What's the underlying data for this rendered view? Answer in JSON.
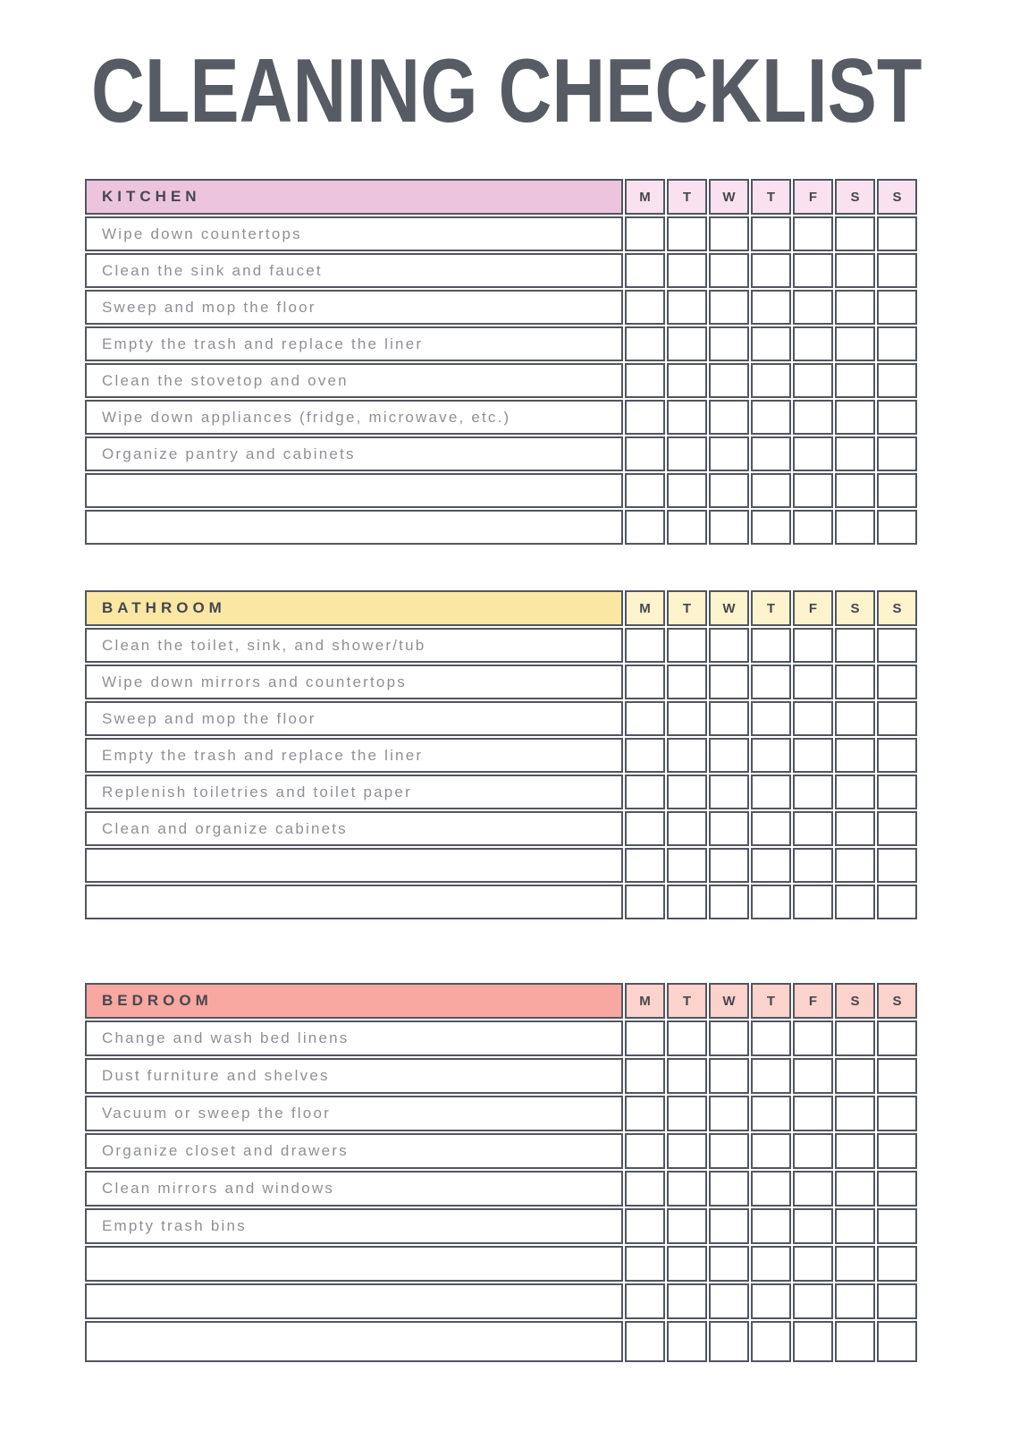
{
  "page": {
    "title": "CLEANING CHECKLIST"
  },
  "days": [
    "M",
    "T",
    "W",
    "T",
    "F",
    "S",
    "S"
  ],
  "sections": [
    {
      "name": "KITCHEN",
      "header_bg": "#edc4de",
      "day_bg": "#f9e1f0",
      "tasks": [
        "Wipe down countertops",
        "Clean the sink and faucet",
        "Sweep and mop the floor",
        "Empty the trash and replace the liner",
        "Clean the stovetop and oven",
        "Wipe down appliances (fridge, microwave, etc.)",
        "Organize pantry and cabinets",
        "",
        ""
      ]
    },
    {
      "name": "BATHROOM",
      "header_bg": "#fae7a3",
      "day_bg": "#fdf3cd",
      "tasks": [
        "Clean the toilet, sink, and shower/tub",
        "Wipe down mirrors and countertops",
        "Sweep and mop the floor",
        "Empty the trash and replace the liner",
        "Replenish toiletries and toilet paper",
        "Clean and organize cabinets",
        "",
        ""
      ]
    },
    {
      "name": "BEDROOM",
      "header_bg": "#f9a7a1",
      "day_bg": "#fcd2cc",
      "tasks": [
        "Change and wash bed linens",
        "Dust furniture and shelves",
        "Vacuum or sweep the floor",
        "Organize closet and drawers",
        "Clean mirrors and windows",
        "Empty trash bins",
        "",
        "",
        ""
      ]
    }
  ],
  "colors": {
    "border": "#51565f",
    "title_text": "#575c64",
    "header_text": "#45474f",
    "task_text": "#8d9095",
    "page_bg": "#ffffff"
  }
}
